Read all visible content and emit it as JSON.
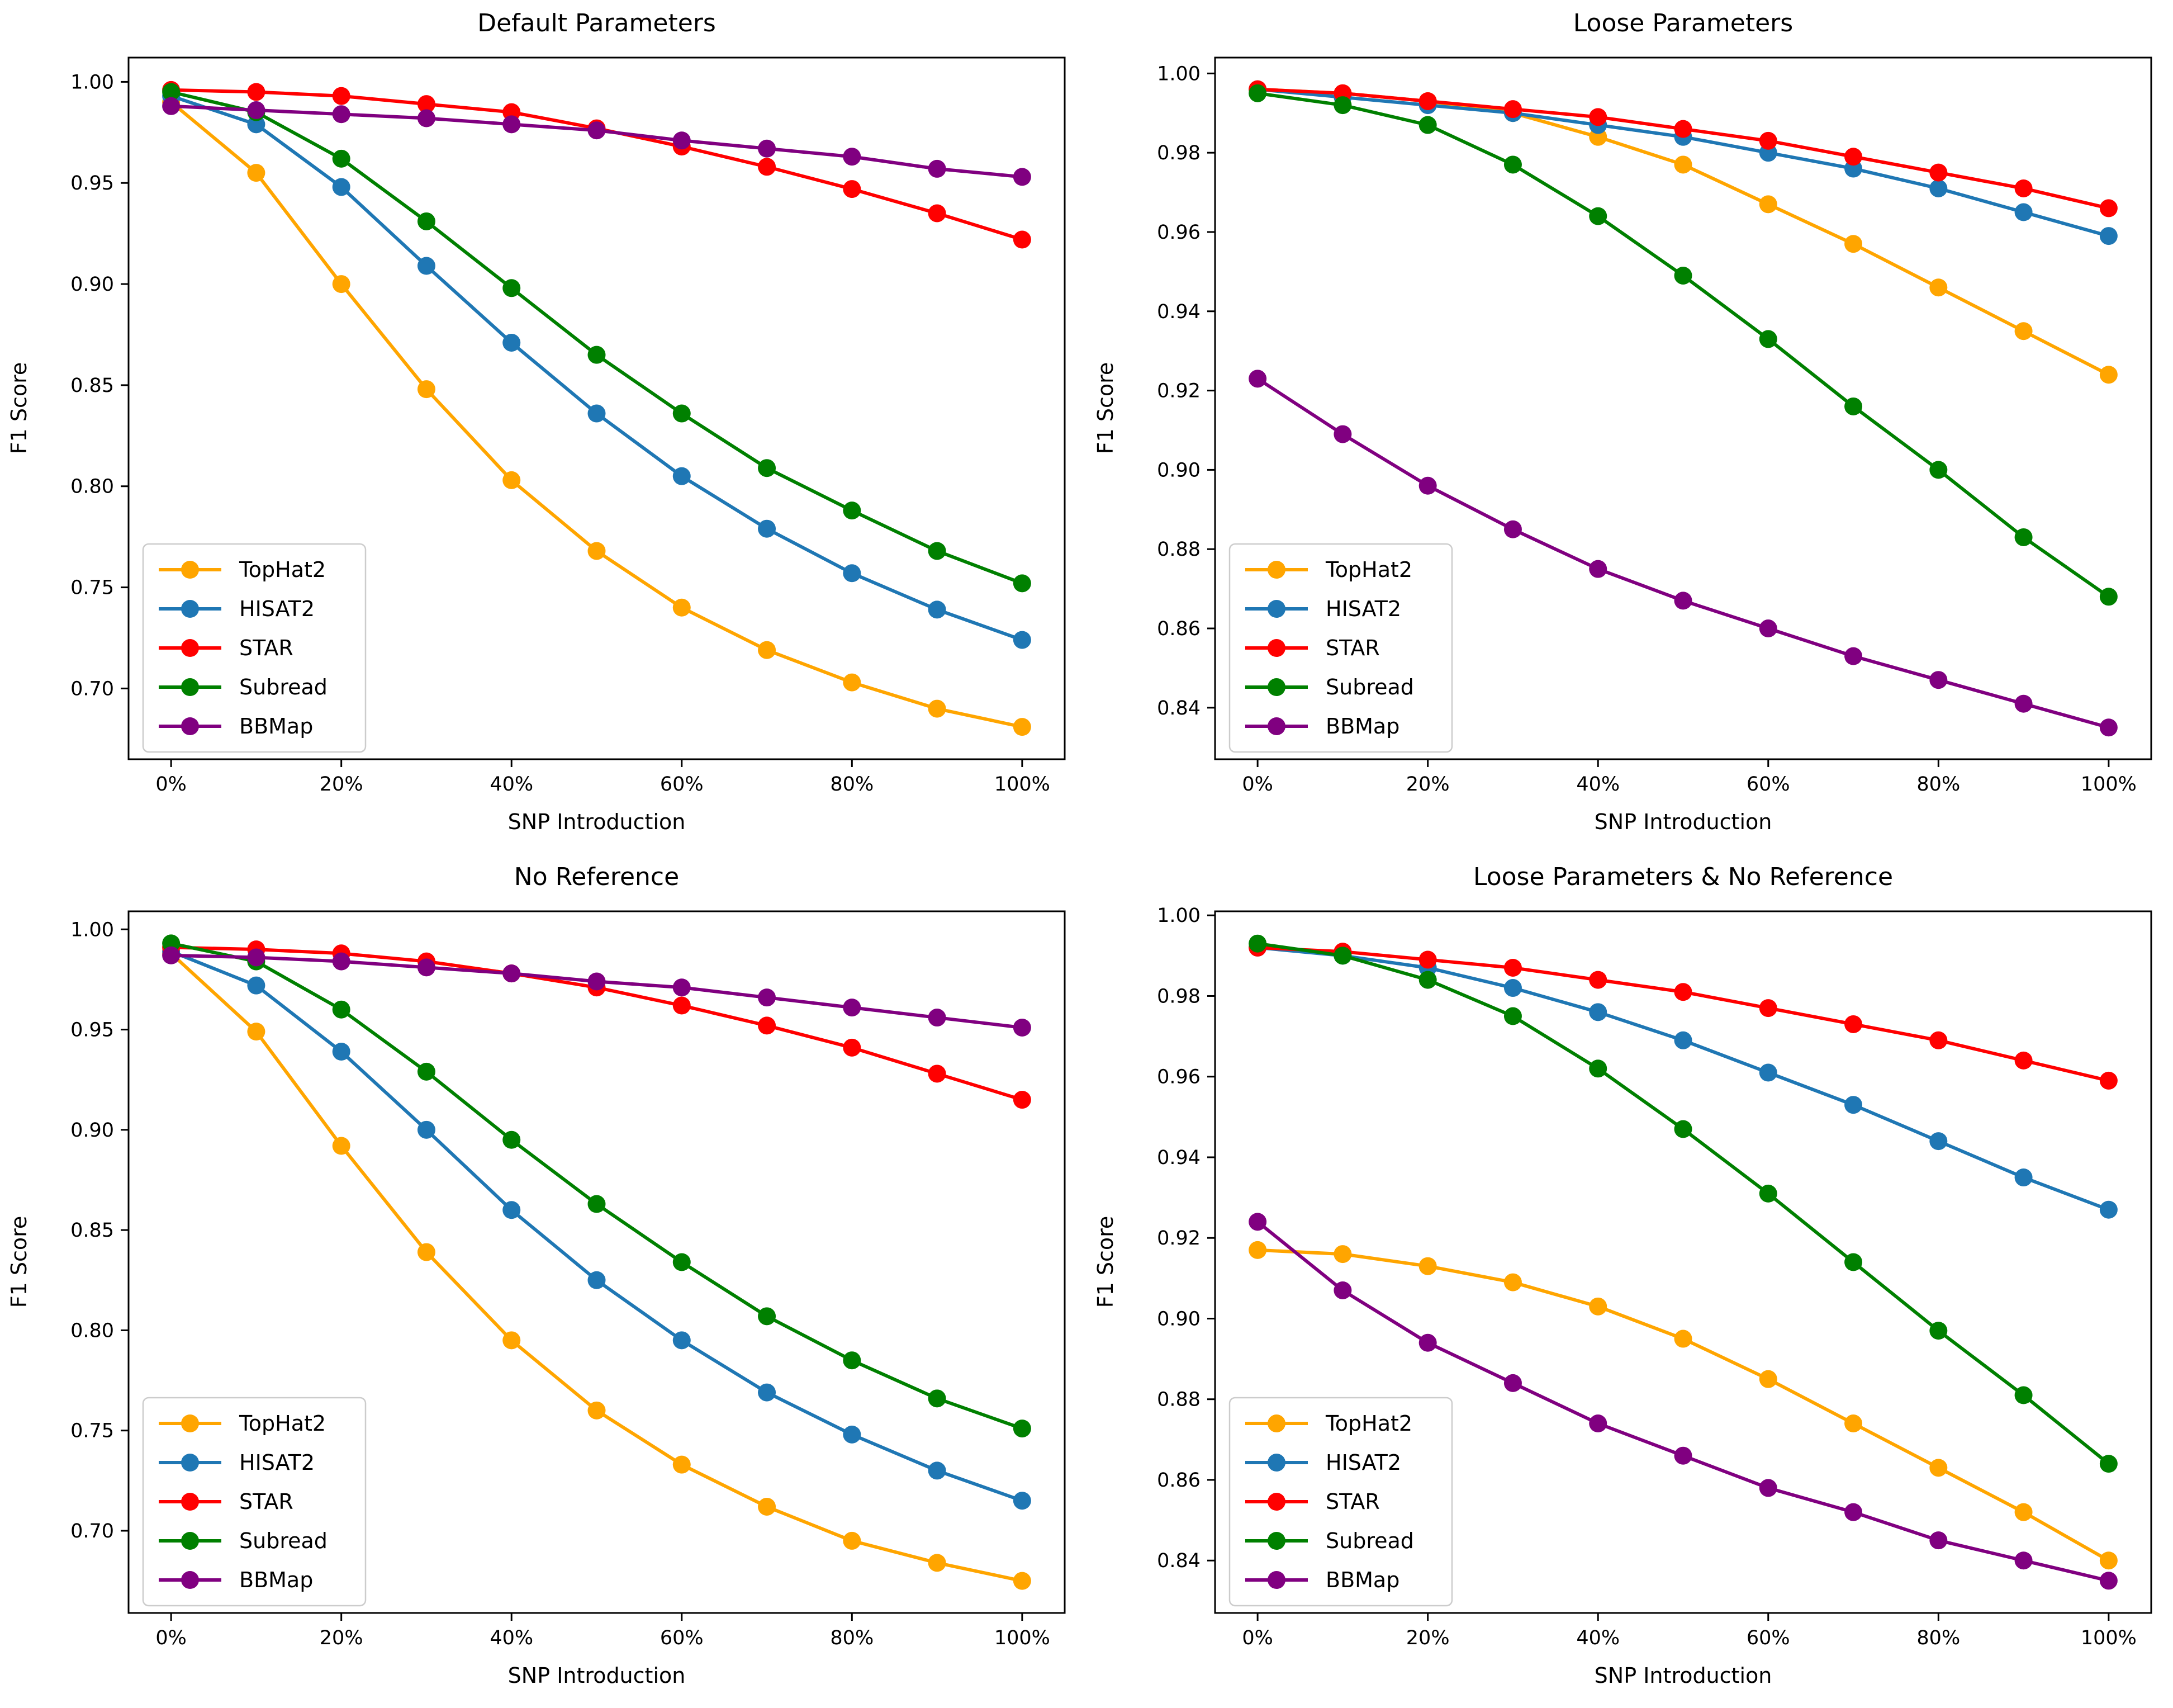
{
  "figure": {
    "background": "#ffffff",
    "text_color": "#000000",
    "spine_color": "#000000",
    "legend_border_color": "#cccccc",
    "legend_background": "#ffffff"
  },
  "chart_data": [
    {
      "type": "line",
      "title": "Default Parameters",
      "xlabel": "SNP Introduction",
      "ylabel": "F1 Score",
      "x": [
        0,
        10,
        20,
        30,
        40,
        50,
        60,
        70,
        80,
        90,
        100
      ],
      "xticks": [
        0,
        20,
        40,
        60,
        80,
        100
      ],
      "xtick_labels": [
        "0%",
        "20%",
        "40%",
        "60%",
        "80%",
        "100%"
      ],
      "yticks": [
        0.7,
        0.75,
        0.8,
        0.85,
        0.9,
        0.95,
        1.0
      ],
      "ytick_labels": [
        "0.70",
        "0.75",
        "0.80",
        "0.85",
        "0.90",
        "0.95",
        "1.00"
      ],
      "xlim": [
        -5,
        105
      ],
      "ylim": [
        0.665,
        1.012
      ],
      "grid": false,
      "legend_position": "lower left",
      "series": [
        {
          "name": "TopHat2",
          "color": "#FFA500",
          "values": [
            0.99,
            0.955,
            0.9,
            0.848,
            0.803,
            0.768,
            0.74,
            0.719,
            0.703,
            0.69,
            0.681
          ]
        },
        {
          "name": "HISAT2",
          "color": "#1F77B4",
          "values": [
            0.993,
            0.979,
            0.948,
            0.909,
            0.871,
            0.836,
            0.805,
            0.779,
            0.757,
            0.739,
            0.724
          ]
        },
        {
          "name": "STAR",
          "color": "#FF0000",
          "values": [
            0.996,
            0.995,
            0.993,
            0.989,
            0.985,
            0.977,
            0.968,
            0.958,
            0.947,
            0.935,
            0.922
          ]
        },
        {
          "name": "Subread",
          "color": "#008000",
          "values": [
            0.995,
            0.985,
            0.962,
            0.931,
            0.898,
            0.865,
            0.836,
            0.809,
            0.788,
            0.768,
            0.752
          ]
        },
        {
          "name": "BBMap",
          "color": "#800080",
          "values": [
            0.988,
            0.986,
            0.984,
            0.982,
            0.979,
            0.976,
            0.971,
            0.967,
            0.963,
            0.957,
            0.953
          ]
        }
      ]
    },
    {
      "type": "line",
      "title": "Loose Parameters",
      "xlabel": "SNP Introduction",
      "ylabel": "F1 Score",
      "x": [
        0,
        10,
        20,
        30,
        40,
        50,
        60,
        70,
        80,
        90,
        100
      ],
      "xticks": [
        0,
        20,
        40,
        60,
        80,
        100
      ],
      "xtick_labels": [
        "0%",
        "20%",
        "40%",
        "60%",
        "80%",
        "100%"
      ],
      "yticks": [
        0.84,
        0.86,
        0.88,
        0.9,
        0.92,
        0.94,
        0.96,
        0.98,
        1.0
      ],
      "ytick_labels": [
        "0.84",
        "0.86",
        "0.88",
        "0.90",
        "0.92",
        "0.94",
        "0.96",
        "0.98",
        "1.00"
      ],
      "xlim": [
        -5,
        105
      ],
      "ylim": [
        0.827,
        1.004
      ],
      "grid": false,
      "legend_position": "lower left",
      "series": [
        {
          "name": "TopHat2",
          "color": "#FFA500",
          "values": [
            0.996,
            0.995,
            0.993,
            0.99,
            0.984,
            0.977,
            0.967,
            0.957,
            0.946,
            0.935,
            0.924
          ]
        },
        {
          "name": "HISAT2",
          "color": "#1F77B4",
          "values": [
            0.996,
            0.994,
            0.992,
            0.99,
            0.987,
            0.984,
            0.98,
            0.976,
            0.971,
            0.965,
            0.959
          ]
        },
        {
          "name": "STAR",
          "color": "#FF0000",
          "values": [
            0.996,
            0.995,
            0.993,
            0.991,
            0.989,
            0.986,
            0.983,
            0.979,
            0.975,
            0.971,
            0.966
          ]
        },
        {
          "name": "Subread",
          "color": "#008000",
          "values": [
            0.995,
            0.992,
            0.987,
            0.977,
            0.964,
            0.949,
            0.933,
            0.916,
            0.9,
            0.883,
            0.868
          ]
        },
        {
          "name": "BBMap",
          "color": "#800080",
          "values": [
            0.923,
            0.909,
            0.896,
            0.885,
            0.875,
            0.867,
            0.86,
            0.853,
            0.847,
            0.841,
            0.835
          ]
        }
      ]
    },
    {
      "type": "line",
      "title": "No Reference",
      "xlabel": "SNP Introduction",
      "ylabel": "F1 Score",
      "x": [
        0,
        10,
        20,
        30,
        40,
        50,
        60,
        70,
        80,
        90,
        100
      ],
      "xticks": [
        0,
        20,
        40,
        60,
        80,
        100
      ],
      "xtick_labels": [
        "0%",
        "20%",
        "40%",
        "60%",
        "80%",
        "100%"
      ],
      "yticks": [
        0.7,
        0.75,
        0.8,
        0.85,
        0.9,
        0.95,
        1.0
      ],
      "ytick_labels": [
        "0.70",
        "0.75",
        "0.80",
        "0.85",
        "0.90",
        "0.95",
        "1.00"
      ],
      "xlim": [
        -5,
        105
      ],
      "ylim": [
        0.659,
        1.009
      ],
      "grid": false,
      "legend_position": "lower left",
      "series": [
        {
          "name": "TopHat2",
          "color": "#FFA500",
          "values": [
            0.988,
            0.949,
            0.892,
            0.839,
            0.795,
            0.76,
            0.733,
            0.712,
            0.695,
            0.684,
            0.675
          ]
        },
        {
          "name": "HISAT2",
          "color": "#1F77B4",
          "values": [
            0.989,
            0.972,
            0.939,
            0.9,
            0.86,
            0.825,
            0.795,
            0.769,
            0.748,
            0.73,
            0.715
          ]
        },
        {
          "name": "STAR",
          "color": "#FF0000",
          "values": [
            0.991,
            0.99,
            0.988,
            0.984,
            0.978,
            0.971,
            0.962,
            0.952,
            0.941,
            0.928,
            0.915
          ]
        },
        {
          "name": "Subread",
          "color": "#008000",
          "values": [
            0.993,
            0.984,
            0.96,
            0.929,
            0.895,
            0.863,
            0.834,
            0.807,
            0.785,
            0.766,
            0.751
          ]
        },
        {
          "name": "BBMap",
          "color": "#800080",
          "values": [
            0.987,
            0.986,
            0.984,
            0.981,
            0.978,
            0.974,
            0.971,
            0.966,
            0.961,
            0.956,
            0.951
          ]
        }
      ]
    },
    {
      "type": "line",
      "title": "Loose Parameters & No Reference",
      "xlabel": "SNP Introduction",
      "ylabel": "F1 Score",
      "x": [
        0,
        10,
        20,
        30,
        40,
        50,
        60,
        70,
        80,
        90,
        100
      ],
      "xticks": [
        0,
        20,
        40,
        60,
        80,
        100
      ],
      "xtick_labels": [
        "0%",
        "20%",
        "40%",
        "60%",
        "80%",
        "100%"
      ],
      "yticks": [
        0.84,
        0.86,
        0.88,
        0.9,
        0.92,
        0.94,
        0.96,
        0.98,
        1.0
      ],
      "ytick_labels": [
        "0.84",
        "0.86",
        "0.88",
        "0.90",
        "0.92",
        "0.94",
        "0.96",
        "0.98",
        "1.00"
      ],
      "xlim": [
        -5,
        105
      ],
      "ylim": [
        0.827,
        1.001
      ],
      "grid": false,
      "legend_position": "lower left",
      "series": [
        {
          "name": "TopHat2",
          "color": "#FFA500",
          "values": [
            0.917,
            0.916,
            0.913,
            0.909,
            0.903,
            0.895,
            0.885,
            0.874,
            0.863,
            0.852,
            0.84
          ]
        },
        {
          "name": "HISAT2",
          "color": "#1F77B4",
          "values": [
            0.992,
            0.99,
            0.987,
            0.982,
            0.976,
            0.969,
            0.961,
            0.953,
            0.944,
            0.935,
            0.927
          ]
        },
        {
          "name": "STAR",
          "color": "#FF0000",
          "values": [
            0.992,
            0.991,
            0.989,
            0.987,
            0.984,
            0.981,
            0.977,
            0.973,
            0.969,
            0.964,
            0.959
          ]
        },
        {
          "name": "Subread",
          "color": "#008000",
          "values": [
            0.993,
            0.99,
            0.984,
            0.975,
            0.962,
            0.947,
            0.931,
            0.914,
            0.897,
            0.881,
            0.864
          ]
        },
        {
          "name": "BBMap",
          "color": "#800080",
          "values": [
            0.924,
            0.907,
            0.894,
            0.884,
            0.874,
            0.866,
            0.858,
            0.852,
            0.845,
            0.84,
            0.835
          ]
        }
      ]
    }
  ]
}
